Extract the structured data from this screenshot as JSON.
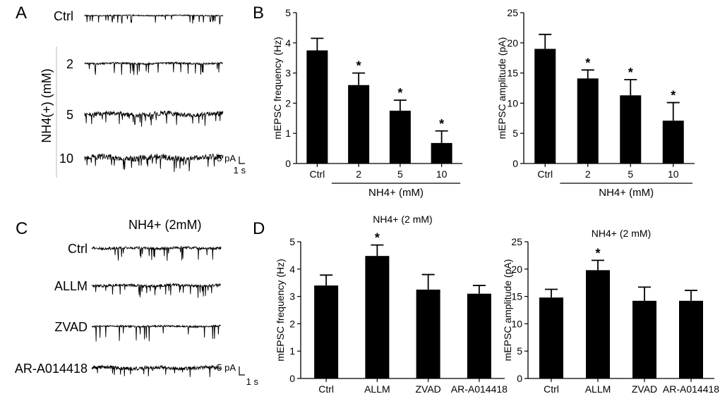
{
  "panels": {
    "A": {
      "letter": "A",
      "group_label": "NH4(+) (mM)",
      "traces": [
        {
          "label": "Ctrl",
          "noise": 0.8,
          "spikes": 34,
          "amp": 12
        },
        {
          "label": "2",
          "noise": 1.3,
          "spikes": 24,
          "amp": 16
        },
        {
          "label": "5",
          "noise": 3.2,
          "spikes": 28,
          "amp": 14
        },
        {
          "label": "10",
          "noise": 4.0,
          "spikes": 26,
          "amp": 18
        }
      ],
      "scale_y": "5 pA",
      "scale_x": "1 s"
    },
    "C": {
      "letter": "C",
      "condition": "NH4+ (2mM)",
      "traces": [
        {
          "label": "Ctrl",
          "noise": 1.8,
          "spikes": 22,
          "amp": 18
        },
        {
          "label": "ALLM",
          "noise": 2.0,
          "spikes": 30,
          "amp": 16
        },
        {
          "label": "ZVAD",
          "noise": 1.2,
          "spikes": 16,
          "amp": 22
        },
        {
          "label": "AR-A014418",
          "noise": 2.6,
          "spikes": 14,
          "amp": 14
        }
      ],
      "scale_y": "5 pA",
      "scale_x": "1 s"
    },
    "B_letter": "B",
    "D_letter": "D"
  },
  "chart_data": [
    {
      "type": "bar",
      "panel": "B",
      "title": "",
      "ylabel": "mEPSC frequency (Hz)",
      "categories": [
        "Ctrl",
        "2",
        "5",
        "10"
      ],
      "values": [
        3.75,
        2.6,
        1.75,
        0.68
      ],
      "errors": [
        0.4,
        0.4,
        0.35,
        0.4
      ],
      "significant": [
        false,
        true,
        true,
        true
      ],
      "star": "*",
      "ylim": [
        0,
        5
      ],
      "yticks": [
        "0",
        "1",
        "2",
        "3",
        "4",
        "5"
      ],
      "group_label": "NH4+ (mM)"
    },
    {
      "type": "bar",
      "panel": "B",
      "title": "",
      "ylabel": "mEPSC amplitude (pA)",
      "categories": [
        "Ctrl",
        "2",
        "5",
        "10"
      ],
      "values": [
        19,
        14.1,
        11.3,
        7.1
      ],
      "errors": [
        2.4,
        1.4,
        2.6,
        3.0
      ],
      "significant": [
        false,
        true,
        true,
        true
      ],
      "star": "*",
      "ylim": [
        0,
        25
      ],
      "yticks": [
        "0",
        "5",
        "10",
        "15",
        "20",
        "25"
      ],
      "group_label": "NH4+ (mM)"
    },
    {
      "type": "bar",
      "panel": "D",
      "title": "NH4+ (2 mM)",
      "ylabel": "mEPSC frequency (Hz)",
      "categories": [
        "Ctrl",
        "ALLM",
        "ZVAD",
        "AR-A014418"
      ],
      "values": [
        3.4,
        4.48,
        3.25,
        3.1
      ],
      "errors": [
        0.38,
        0.4,
        0.55,
        0.3
      ],
      "significant": [
        false,
        true,
        false,
        false
      ],
      "star": "*",
      "ylim": [
        0,
        5
      ],
      "yticks": [
        "0",
        "1",
        "2",
        "3",
        "4",
        "5"
      ],
      "group_label": ""
    },
    {
      "type": "bar",
      "panel": "D",
      "title": "NH4+ (2 mM)",
      "ylabel": "mEPSC amplitude (pA)",
      "categories": [
        "Ctrl",
        "ALLM",
        "ZVAD",
        "AR-A014418"
      ],
      "values": [
        14.8,
        19.8,
        14.2,
        14.2
      ],
      "errors": [
        1.5,
        1.8,
        2.5,
        1.9
      ],
      "significant": [
        false,
        true,
        false,
        false
      ],
      "star": "*",
      "ylim": [
        0,
        25
      ],
      "yticks": [
        "0",
        "5",
        "10",
        "15",
        "20",
        "25"
      ],
      "group_label": ""
    }
  ]
}
